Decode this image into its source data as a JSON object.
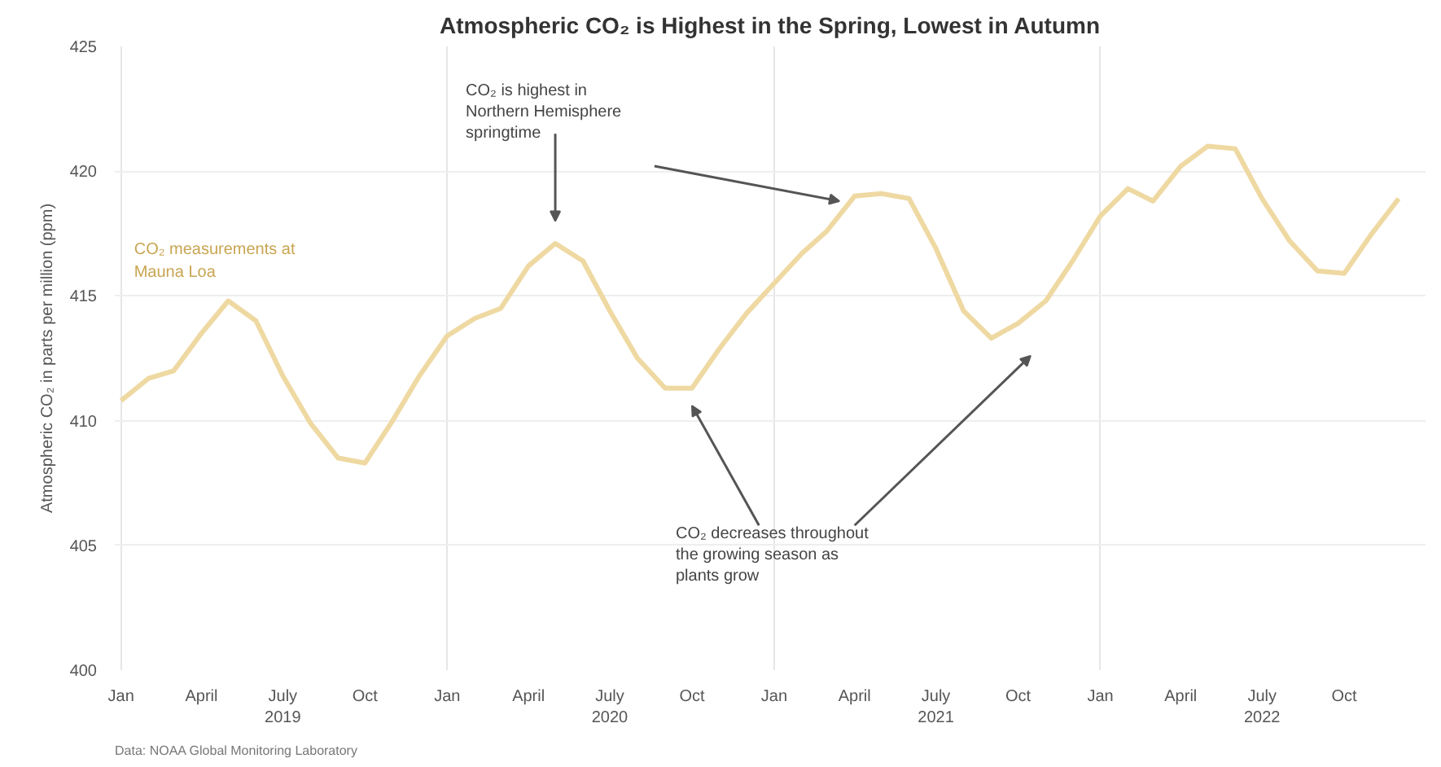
{
  "chart_data": {
    "type": "line",
    "title": "Atmospheric CO₂ is Highest in the Spring, Lowest in Autumn",
    "ylabel": "Atmospheric CO₂ in parts per million (ppm)",
    "x": [
      "2019-01",
      "2019-02",
      "2019-03",
      "2019-04",
      "2019-05",
      "2019-06",
      "2019-07",
      "2019-08",
      "2019-09",
      "2019-10",
      "2019-11",
      "2019-12",
      "2020-01",
      "2020-02",
      "2020-03",
      "2020-04",
      "2020-05",
      "2020-06",
      "2020-07",
      "2020-08",
      "2020-09",
      "2020-10",
      "2020-11",
      "2020-12",
      "2021-01",
      "2021-02",
      "2021-03",
      "2021-04",
      "2021-05",
      "2021-06",
      "2021-07",
      "2021-08",
      "2021-09",
      "2021-10",
      "2021-11",
      "2021-12",
      "2022-01",
      "2022-02",
      "2022-03",
      "2022-04",
      "2022-05",
      "2022-06",
      "2022-07",
      "2022-08",
      "2022-09",
      "2022-10",
      "2022-11",
      "2022-12"
    ],
    "series": [
      {
        "color": "#efd9a2",
        "values": [
          410.8,
          411.7,
          412.0,
          413.5,
          414.8,
          414.0,
          411.8,
          409.9,
          408.5,
          408.3,
          410.0,
          411.8,
          413.4,
          414.1,
          414.5,
          416.2,
          417.1,
          416.4,
          414.4,
          412.5,
          411.3,
          411.3,
          412.9,
          414.3,
          415.5,
          416.7,
          417.6,
          419.0,
          419.1,
          418.9,
          416.9,
          414.4,
          413.3,
          413.9,
          414.8,
          416.4,
          418.2,
          419.3,
          418.8,
          420.2,
          421.0,
          420.9,
          418.9,
          417.2,
          416.0,
          415.9,
          417.5,
          418.9
        ]
      }
    ],
    "xlim": [
      "2018-12-25",
      "2022-12-31"
    ],
    "xticks": [
      {
        "value": "2019-01",
        "label": "Jan"
      },
      {
        "value": "2019-04",
        "label": "April"
      },
      {
        "value": "2019-07",
        "label": "July\n2019"
      },
      {
        "value": "2019-10",
        "label": "Oct"
      },
      {
        "value": "2020-01",
        "label": "Jan"
      },
      {
        "value": "2020-04",
        "label": "April"
      },
      {
        "value": "2020-07",
        "label": "July\n2020"
      },
      {
        "value": "2020-10",
        "label": "Oct"
      },
      {
        "value": "2021-01",
        "label": "Jan"
      },
      {
        "value": "2021-04",
        "label": "April"
      },
      {
        "value": "2021-07",
        "label": "July\n2021"
      },
      {
        "value": "2021-10",
        "label": "Oct"
      },
      {
        "value": "2022-01",
        "label": "Jan"
      },
      {
        "value": "2022-04",
        "label": "April"
      },
      {
        "value": "2022-07",
        "label": "July\n2022"
      },
      {
        "value": "2022-10",
        "label": "Oct"
      }
    ],
    "ylim": [
      400,
      425
    ],
    "yticks": [
      400,
      405,
      410,
      415,
      420,
      425
    ],
    "grid": true,
    "line_style": "solid",
    "annotations": [
      "CO₂ measurements at\nMauna Loa",
      "CO₂ is highest in\nNorthern Hemisphere\nspringtime",
      "CO₂ decreases throughout\nthe growing season as\nplants grow",
      "Data: NOAA Global Monitoring Laboratory"
    ]
  }
}
